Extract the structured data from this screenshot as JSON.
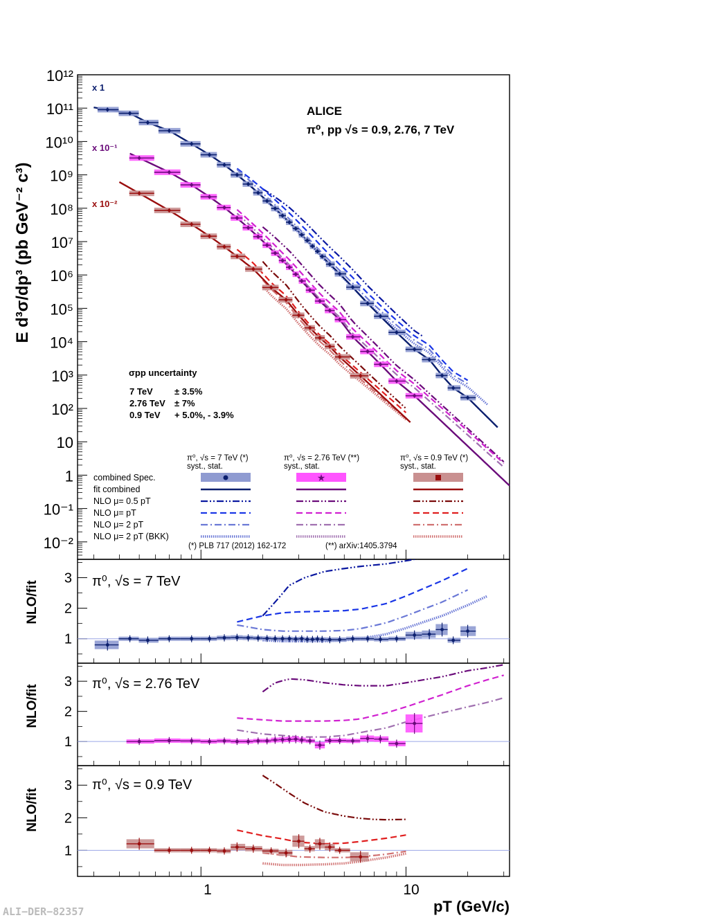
{
  "colors": {
    "c7": "#0b1f6e",
    "c7_box": "#8f9bd1",
    "c7_nlo05": "#0a18a0",
    "c7_nlo1": "#1a36e6",
    "c7_nlo2": "#6a78d6",
    "c7_bkk": "#6a78d6",
    "c276": "#6a0b7a",
    "c276_box": "#ff55ff",
    "c276_nlo05": "#6a0b7a",
    "c276_nlo1": "#d020d0",
    "c276_nlo2": "#a070b0",
    "c276_bkk": "#a070b0",
    "c09": "#9a0e0e",
    "c09_box": "#c99090",
    "c09_nlo05": "#7a0a0a",
    "c09_nlo1": "#e01e1e",
    "c09_nlo2": "#d07070",
    "c09_bkk": "#d07070"
  },
  "main": {
    "ylabel": "E d³σ/dp³ (pb GeV⁻² c³)",
    "y_ticks": [
      "10¹²",
      "10¹¹",
      "10¹⁰",
      "10⁹",
      "10⁸",
      "10⁷",
      "10⁶",
      "10⁵",
      "10⁴",
      "10³",
      "10²",
      "10",
      "1",
      "10⁻¹",
      "10⁻²"
    ],
    "scale_labels": [
      "x 1",
      "x 10⁻¹",
      "x 10⁻²"
    ],
    "experiment": "ALICE",
    "system": "π⁰, pp  √s = 0.9, 2.76, 7 TeV",
    "unc_title": "σpp uncertainty",
    "unc_lines": [
      {
        "energy": "7 TeV",
        "value": "± 3.5%"
      },
      {
        "energy": "2.76 TeV",
        "value": "±  7%"
      },
      {
        "energy": "0.9 TeV",
        "value": "+ 5.0%, - 3.9%"
      }
    ]
  },
  "legend": {
    "columns": [
      {
        "title": "π⁰, √s = 7 TeV (*)",
        "sub": "syst., stat."
      },
      {
        "title": "π⁰, √s = 2.76 TeV (**)",
        "sub": "syst., stat."
      },
      {
        "title": "π⁰, √s = 0.9 TeV (*)",
        "sub": "syst., stat."
      }
    ],
    "rows": [
      "combined Spec.",
      "fit combined",
      "NLO μ= 0.5 pT",
      "NLO μ= pT",
      "NLO μ= 2 pT",
      "NLO μ= 2 pT (BKK)"
    ],
    "refs": [
      "(*) PLB 717 (2012) 162-172",
      "(**) arXiv:1405.3794"
    ]
  },
  "ratio": {
    "ylabel": "NLO/fit",
    "y_ticks": [
      "1",
      "2",
      "3"
    ],
    "panel_labels": [
      "π⁰, √s = 7 TeV",
      "π⁰, √s = 2.76 TeV",
      "π⁰, √s = 0.9 TeV"
    ]
  },
  "x_axis": {
    "label": "pT (GeV/c)",
    "ticks": [
      "1",
      "10"
    ]
  },
  "watermark": "ALI−DER−82357",
  "chart_data": [
    {
      "type": "scatter",
      "title": "ALICE π⁰, pp √s = 0.9, 2.76, 7 TeV",
      "xlabel": "pT (GeV/c)",
      "ylabel": "E d³σ/dp³ (pb GeV⁻² c³)",
      "x_scale": "log",
      "y_scale": "log",
      "xlim": [
        0.25,
        32
      ],
      "ylim": [
        0.003,
        1000000000000.0
      ],
      "series": [
        {
          "name": "π⁰, √s = 7 TeV (*)",
          "scale": "x 1",
          "x": [
            0.35,
            0.45,
            0.55,
            0.7,
            0.9,
            1.1,
            1.3,
            1.5,
            1.7,
            1.9,
            2.1,
            2.3,
            2.5,
            2.7,
            2.9,
            3.1,
            3.3,
            3.5,
            3.7,
            3.9,
            4.25,
            4.75,
            5.5,
            6.5,
            7.5,
            9,
            11,
            13,
            15,
            17,
            20
          ],
          "y": [
            90000000000.0,
            70000000000.0,
            37000000000.0,
            21000000000.0,
            8500000000.0,
            4000000000.0,
            2000000000.0,
            1000000000.0,
            530000000.0,
            290000000.0,
            165000000.0,
            98000000.0,
            60000000.0,
            38000000.0,
            24500000.0,
            16000000.0,
            10800000.0,
            7300000.0,
            5100000.0,
            3600000.0,
            2100000.0,
            1080000.0,
            430000.0,
            140000.0,
            58000.0,
            19000.0,
            5900.0,
            2900.0,
            970.0,
            410.0,
            210.0
          ]
        },
        {
          "name": "π⁰, √s = 2.76 TeV (**)",
          "scale": "x 10⁻¹",
          "x": [
            0.5,
            0.7,
            0.9,
            1.1,
            1.3,
            1.5,
            1.7,
            1.9,
            2.1,
            2.3,
            2.5,
            2.7,
            2.9,
            3.1,
            3.4,
            3.8,
            4.25,
            4.75,
            5.5,
            6.5,
            7.5,
            9,
            11
          ],
          "y": [
            3200000000.0,
            1200000000.0,
            500000000.0,
            220000000.0,
            105000000.0,
            51000000.0,
            26000000.0,
            14000000.0,
            7800000.0,
            4500000.0,
            2700000.0,
            1700000.0,
            1050000.0,
            660000.0,
            350000.0,
            165000.0,
            86000.0,
            46000.0,
            14000.0,
            5100.0,
            2100.0,
            660.0,
            240.0
          ]
        },
        {
          "name": "π⁰, √s = 0.9 TeV (*)",
          "scale": "x 10⁻²",
          "x": [
            0.5,
            0.7,
            0.9,
            1.1,
            1.3,
            1.5,
            1.8,
            2.2,
            2.6,
            3.0,
            3.4,
            3.8,
            4.25,
            4.75,
            6
          ],
          "y": [
            280000000.0,
            86000000.0,
            33000000.0,
            14500000.0,
            7000000.0,
            3600000.0,
            1500000.0,
            420000.0,
            180000.0,
            62000.0,
            26000.0,
            13000.0,
            7200.0,
            3500.0,
            950.0
          ]
        }
      ]
    },
    {
      "type": "line",
      "title": "π⁰, √s = 7 TeV",
      "ylabel": "NLO/fit",
      "ylim": [
        0.2,
        3.6
      ],
      "x_scale": "log",
      "series": [
        {
          "name": "NLO μ= 0.5 pT",
          "x": [
            2,
            2.3,
            2.7,
            3.2,
            4,
            5,
            6,
            8,
            10,
            12
          ],
          "y": [
            1.75,
            2.2,
            2.75,
            3.0,
            3.2,
            3.3,
            3.37,
            3.45,
            3.55,
            3.65
          ]
        },
        {
          "name": "NLO μ= pT",
          "x": [
            1.5,
            2,
            2.5,
            3,
            4,
            5,
            6,
            8,
            10,
            15,
            20
          ],
          "y": [
            1.55,
            1.75,
            1.85,
            1.88,
            1.9,
            1.92,
            1.97,
            2.15,
            2.4,
            2.9,
            3.3
          ]
        },
        {
          "name": "NLO μ= 2 pT",
          "x": [
            1.5,
            2,
            2.5,
            3,
            4,
            5,
            6,
            8,
            10,
            15,
            20
          ],
          "y": [
            1.45,
            1.3,
            1.25,
            1.25,
            1.25,
            1.27,
            1.33,
            1.52,
            1.75,
            2.2,
            2.6
          ]
        },
        {
          "name": "NLO μ= 2 pT (BKK)",
          "x": [
            2,
            2.5,
            3,
            4,
            5,
            6,
            8,
            10,
            15,
            20,
            25
          ],
          "y": [
            0.95,
            0.92,
            0.92,
            0.92,
            0.95,
            1.0,
            1.15,
            1.35,
            1.75,
            2.1,
            2.4
          ]
        }
      ],
      "points": {
        "x": [
          0.35,
          0.45,
          0.55,
          0.7,
          0.9,
          1.1,
          1.3,
          1.5,
          1.7,
          1.9,
          2.1,
          2.3,
          2.5,
          2.7,
          2.9,
          3.1,
          3.3,
          3.5,
          3.7,
          3.9,
          4.25,
          4.75,
          5.5,
          6.5,
          7.5,
          9,
          11,
          13,
          15,
          17,
          20
        ],
        "y": [
          0.8,
          1.0,
          0.95,
          1.0,
          1.0,
          1.0,
          1.03,
          1.04,
          1.03,
          1.02,
          1.01,
          1.0,
          1.0,
          1.0,
          0.99,
          1.0,
          0.98,
          0.98,
          0.99,
          0.98,
          0.97,
          0.97,
          1.0,
          1.0,
          0.98,
          1.0,
          1.12,
          1.15,
          1.3,
          0.95,
          1.25
        ]
      }
    },
    {
      "type": "line",
      "title": "π⁰, √s = 2.76 TeV",
      "ylabel": "NLO/fit",
      "ylim": [
        0.2,
        3.6
      ],
      "x_scale": "log",
      "series": [
        {
          "name": "NLO μ= 0.5 pT",
          "x": [
            2,
            2.3,
            2.7,
            3.2,
            4,
            5,
            6,
            8,
            10,
            15,
            20,
            25,
            30
          ],
          "y": [
            2.65,
            2.95,
            3.08,
            3.05,
            2.95,
            2.88,
            2.85,
            2.85,
            2.95,
            3.15,
            3.35,
            3.45,
            3.55
          ]
        },
        {
          "name": "NLO μ= pT",
          "x": [
            1.5,
            2,
            2.5,
            3,
            4,
            5,
            6,
            8,
            10,
            15,
            20,
            25,
            30
          ],
          "y": [
            1.78,
            1.72,
            1.68,
            1.68,
            1.68,
            1.7,
            1.75,
            1.95,
            2.15,
            2.55,
            2.85,
            3.05,
            3.2
          ]
        },
        {
          "name": "NLO μ= 2 pT",
          "x": [
            1.5,
            2,
            2.5,
            3,
            4,
            5,
            6,
            8,
            10,
            15,
            20,
            25,
            30
          ],
          "y": [
            1.38,
            1.25,
            1.2,
            1.15,
            1.15,
            1.2,
            1.3,
            1.45,
            1.65,
            1.95,
            2.15,
            2.3,
            2.45
          ]
        }
      ],
      "points": {
        "x": [
          0.5,
          0.7,
          0.9,
          1.1,
          1.3,
          1.5,
          1.7,
          1.9,
          2.1,
          2.3,
          2.5,
          2.7,
          2.9,
          3.1,
          3.4,
          3.8,
          4.25,
          4.75,
          5.5,
          6.5,
          7.5,
          9,
          11
        ],
        "y": [
          1.0,
          1.03,
          1.02,
          1.0,
          1.02,
          1.0,
          1.0,
          1.02,
          1.02,
          1.05,
          1.06,
          1.07,
          1.08,
          1.05,
          1.02,
          0.88,
          1.03,
          1.03,
          1.02,
          1.1,
          1.08,
          0.93,
          1.6
        ]
      }
    },
    {
      "type": "line",
      "title": "π⁰, √s = 0.9 TeV",
      "ylabel": "NLO/fit",
      "ylim": [
        0.2,
        3.6
      ],
      "x_scale": "log",
      "series": [
        {
          "name": "NLO μ= 0.5 pT",
          "x": [
            2,
            2.3,
            2.7,
            3.2,
            4,
            5,
            6,
            7,
            8,
            10
          ],
          "y": [
            3.3,
            3.05,
            2.75,
            2.45,
            2.18,
            2.05,
            1.98,
            1.95,
            1.94,
            1.95
          ]
        },
        {
          "name": "NLO μ= pT",
          "x": [
            1.5,
            2,
            2.5,
            3,
            4,
            5,
            6,
            8,
            10
          ],
          "y": [
            1.62,
            1.45,
            1.35,
            1.25,
            1.2,
            1.22,
            1.27,
            1.37,
            1.47
          ]
        },
        {
          "name": "NLO μ= 2 pT",
          "x": [
            2,
            2.5,
            3,
            4,
            5,
            6,
            8,
            10
          ],
          "y": [
            0.92,
            0.85,
            0.8,
            0.78,
            0.78,
            0.8,
            0.88,
            0.97
          ]
        },
        {
          "name": "NLO μ= 2 pT (BKK)",
          "x": [
            2,
            2.5,
            3,
            4,
            5,
            6,
            8,
            10
          ],
          "y": [
            0.6,
            0.55,
            0.55,
            0.57,
            0.6,
            0.66,
            0.78,
            0.9
          ]
        }
      ],
      "points": {
        "x": [
          0.5,
          0.7,
          0.9,
          1.1,
          1.3,
          1.5,
          1.8,
          2.2,
          2.6,
          3.0,
          3.4,
          3.8,
          4.25,
          4.75,
          6
        ],
        "y": [
          1.2,
          1.0,
          1.0,
          1.0,
          0.98,
          1.1,
          1.05,
          0.98,
          0.92,
          1.28,
          1.05,
          1.2,
          1.1,
          1.0,
          0.8
        ]
      }
    }
  ]
}
